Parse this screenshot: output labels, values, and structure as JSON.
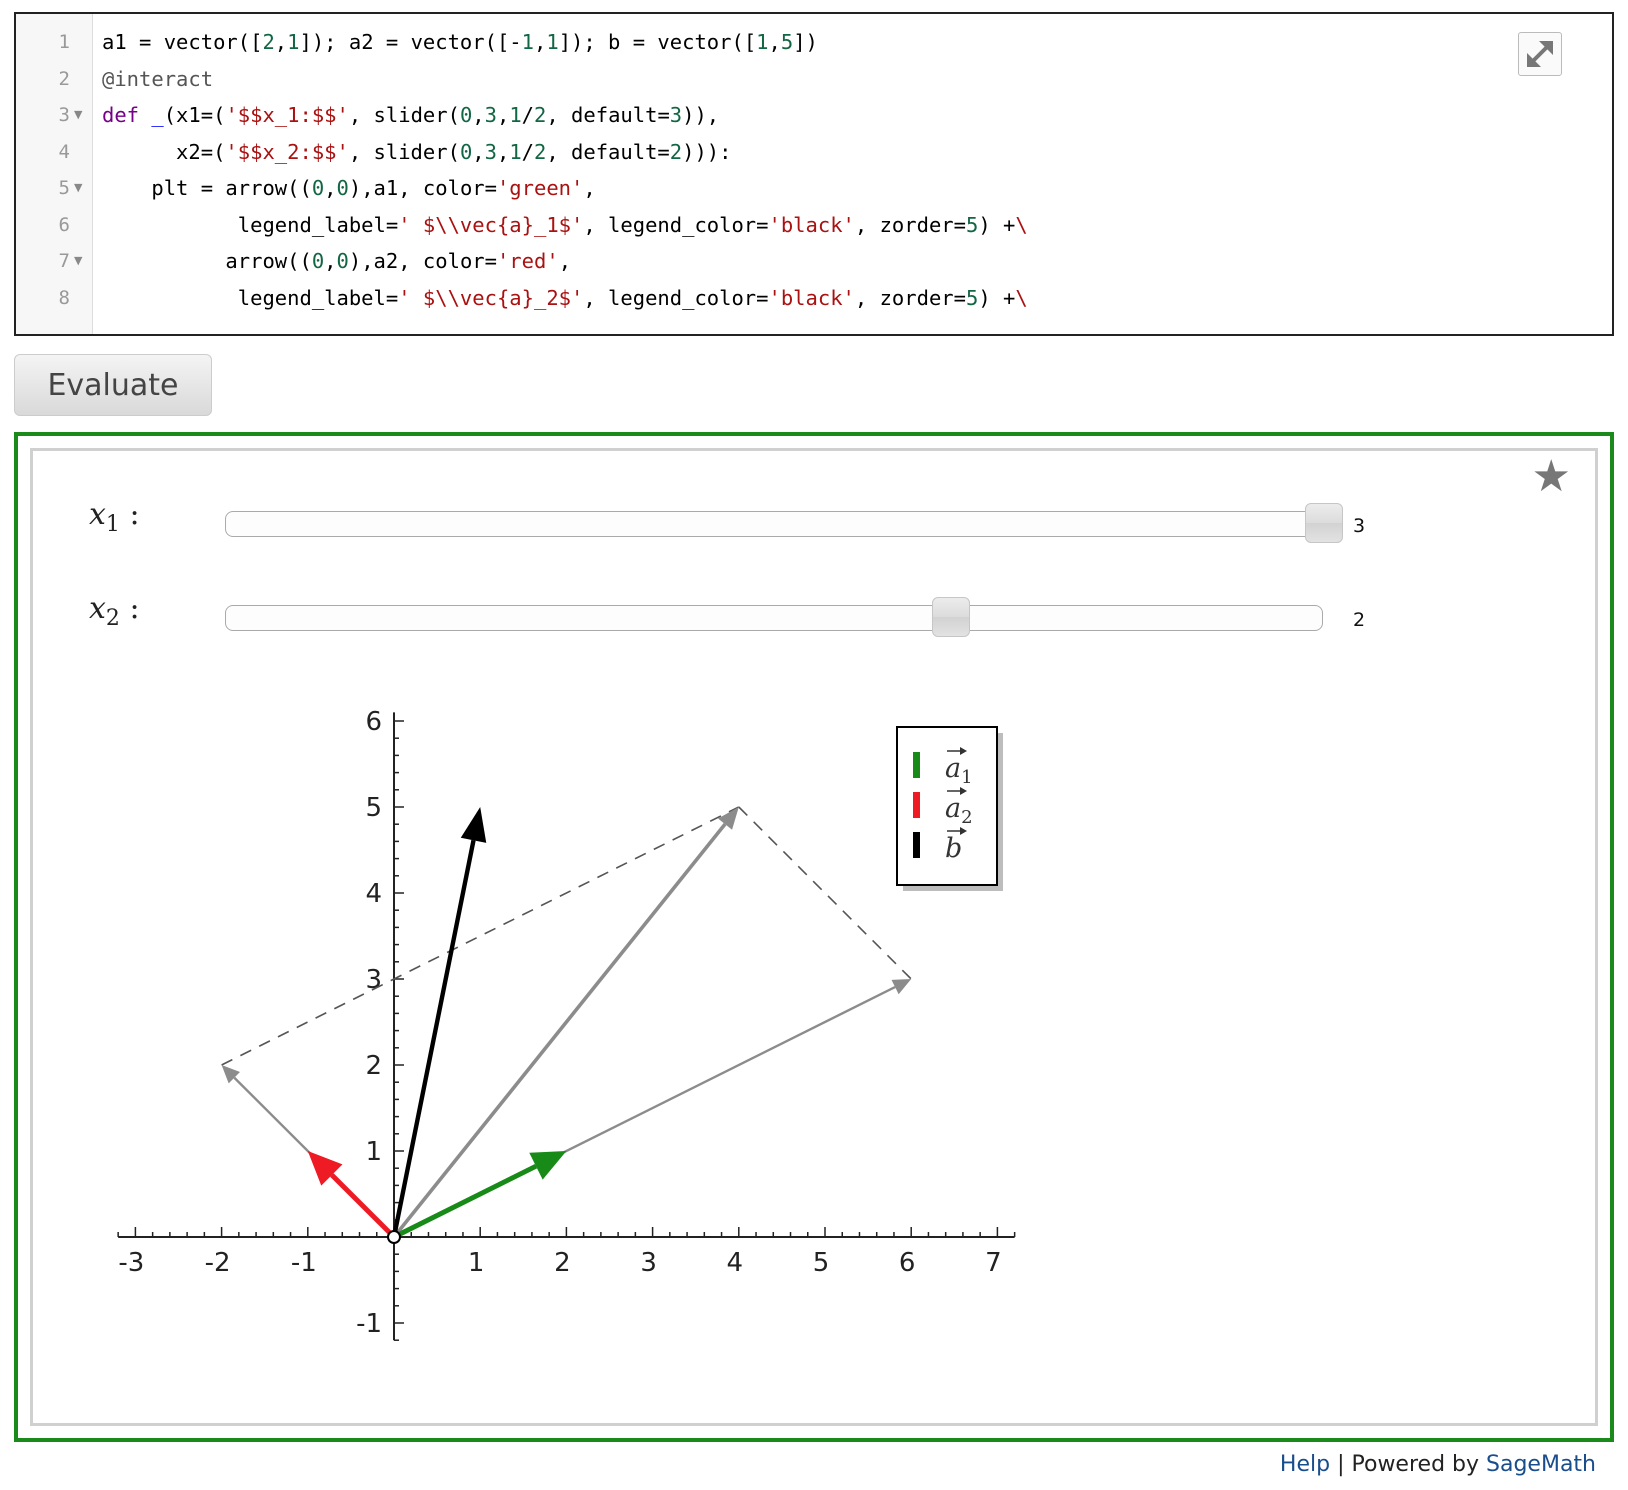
{
  "editor": {
    "line_numbers": [
      "1",
      "2",
      "3",
      "4",
      "5",
      "6",
      "7",
      "8"
    ],
    "lines": [
      [
        {
          "t": "a1 = vector([",
          "c": ""
        },
        {
          "t": "2",
          "c": "num"
        },
        {
          "t": ",",
          "c": ""
        },
        {
          "t": "1",
          "c": "num"
        },
        {
          "t": "]); a2 = vector([-",
          "c": ""
        },
        {
          "t": "1",
          "c": "num"
        },
        {
          "t": ",",
          "c": ""
        },
        {
          "t": "1",
          "c": "num"
        },
        {
          "t": "]); b = vector([",
          "c": ""
        },
        {
          "t": "1",
          "c": "num"
        },
        {
          "t": ",",
          "c": ""
        },
        {
          "t": "5",
          "c": "num"
        },
        {
          "t": "])",
          "c": ""
        }
      ],
      [
        {
          "t": "@interact",
          "c": "meta"
        }
      ],
      [
        {
          "t": "def",
          "c": "kw"
        },
        {
          "t": " ",
          "c": ""
        },
        {
          "t": "_",
          "c": "def"
        },
        {
          "t": "(x1=(",
          "c": ""
        },
        {
          "t": "'$$x_1:$$'",
          "c": "str"
        },
        {
          "t": ", slider(",
          "c": ""
        },
        {
          "t": "0",
          "c": "num"
        },
        {
          "t": ",",
          "c": ""
        },
        {
          "t": "3",
          "c": "num"
        },
        {
          "t": ",",
          "c": ""
        },
        {
          "t": "1",
          "c": "num"
        },
        {
          "t": "/",
          "c": ""
        },
        {
          "t": "2",
          "c": "num"
        },
        {
          "t": ", default=",
          "c": ""
        },
        {
          "t": "3",
          "c": "num"
        },
        {
          "t": ")),",
          "c": ""
        }
      ],
      [
        {
          "t": "      x2=(",
          "c": ""
        },
        {
          "t": "'$$x_2:$$'",
          "c": "str"
        },
        {
          "t": ", slider(",
          "c": ""
        },
        {
          "t": "0",
          "c": "num"
        },
        {
          "t": ",",
          "c": ""
        },
        {
          "t": "3",
          "c": "num"
        },
        {
          "t": ",",
          "c": ""
        },
        {
          "t": "1",
          "c": "num"
        },
        {
          "t": "/",
          "c": ""
        },
        {
          "t": "2",
          "c": "num"
        },
        {
          "t": ", default=",
          "c": ""
        },
        {
          "t": "2",
          "c": "num"
        },
        {
          "t": "))):",
          "c": ""
        }
      ],
      [
        {
          "t": "    plt = arrow((",
          "c": ""
        },
        {
          "t": "0",
          "c": "num"
        },
        {
          "t": ",",
          "c": ""
        },
        {
          "t": "0",
          "c": "num"
        },
        {
          "t": "),a1, color=",
          "c": ""
        },
        {
          "t": "'green'",
          "c": "str"
        },
        {
          "t": ",",
          "c": ""
        }
      ],
      [
        {
          "t": "           legend_label=",
          "c": ""
        },
        {
          "t": "' $\\\\vec{a}_1$'",
          "c": "str"
        },
        {
          "t": ", legend_color=",
          "c": ""
        },
        {
          "t": "'black'",
          "c": "str"
        },
        {
          "t": ", zorder=",
          "c": ""
        },
        {
          "t": "5",
          "c": "num"
        },
        {
          "t": ") +",
          "c": ""
        },
        {
          "t": "\\",
          "c": "str"
        }
      ],
      [
        {
          "t": "          arrow((",
          "c": ""
        },
        {
          "t": "0",
          "c": "num"
        },
        {
          "t": ",",
          "c": ""
        },
        {
          "t": "0",
          "c": "num"
        },
        {
          "t": "),a2, color=",
          "c": ""
        },
        {
          "t": "'red'",
          "c": "str"
        },
        {
          "t": ",",
          "c": ""
        }
      ],
      [
        {
          "t": "           legend_label=",
          "c": ""
        },
        {
          "t": "' $\\\\vec{a}_2$'",
          "c": "str"
        },
        {
          "t": ", legend_color=",
          "c": ""
        },
        {
          "t": "'black'",
          "c": "str"
        },
        {
          "t": ", zorder=",
          "c": ""
        },
        {
          "t": "5",
          "c": "num"
        },
        {
          "t": ") +",
          "c": ""
        },
        {
          "t": "\\",
          "c": "str"
        }
      ]
    ],
    "foldable_lines": [
      3,
      5,
      7
    ]
  },
  "evaluate_label": "Evaluate",
  "sliders": [
    {
      "name": "x1",
      "symbol": "x",
      "sub": "1",
      "colon": ":",
      "value": "3",
      "min": 0,
      "max": 3,
      "current": 3
    },
    {
      "name": "x2",
      "symbol": "x",
      "sub": "2",
      "colon": ":",
      "value": "2",
      "min": 0,
      "max": 3,
      "current": 2
    }
  ],
  "chart_data": {
    "type": "vector-plot",
    "xlim": [
      -3,
      7
    ],
    "ylim": [
      -1,
      6
    ],
    "x_ticks": [
      "-3",
      "-2",
      "-1",
      "1",
      "2",
      "3",
      "4",
      "5",
      "6",
      "7"
    ],
    "x_tick_values": [
      -3,
      -2,
      -1,
      1,
      2,
      3,
      4,
      5,
      6,
      7
    ],
    "y_ticks": [
      "-1",
      "1",
      "2",
      "3",
      "4",
      "5",
      "6"
    ],
    "y_tick_values": [
      -1,
      1,
      2,
      3,
      4,
      5,
      6
    ],
    "vectors": [
      {
        "name": "a1",
        "from": [
          0,
          0
        ],
        "to": [
          2,
          1
        ],
        "color": "#178a17",
        "role": "basis"
      },
      {
        "name": "a2",
        "from": [
          0,
          0
        ],
        "to": [
          -1,
          1
        ],
        "color": "#ee1a24",
        "role": "basis"
      },
      {
        "name": "b",
        "from": [
          0,
          0
        ],
        "to": [
          1,
          5
        ],
        "color": "#000000",
        "role": "target"
      },
      {
        "name": "x1*a1",
        "from": [
          0,
          0
        ],
        "to": [
          6,
          3
        ],
        "color": "#8c8c8c",
        "role": "scaled"
      },
      {
        "name": "x2*a2",
        "from": [
          0,
          0
        ],
        "to": [
          -2,
          2
        ],
        "color": "#8c8c8c",
        "role": "scaled"
      },
      {
        "name": "x1*a1+x2*a2",
        "from": [
          0,
          0
        ],
        "to": [
          4,
          5
        ],
        "color": "#8c8c8c",
        "role": "sum"
      }
    ],
    "dashed_lines": [
      {
        "from": [
          -2,
          2
        ],
        "to": [
          4,
          5
        ]
      },
      {
        "from": [
          4,
          5
        ],
        "to": [
          6,
          3
        ]
      }
    ],
    "legend": [
      {
        "label": "a1",
        "base": "a",
        "sub": "1",
        "color": "#178a17"
      },
      {
        "label": "a2",
        "base": "a",
        "sub": "2",
        "color": "#ee1a24"
      },
      {
        "label": "b",
        "base": "b",
        "sub": "",
        "color": "#000000"
      }
    ],
    "legend_position": "top-right"
  },
  "footer": {
    "help": "Help",
    "separator": "|",
    "powered_by": "Powered by",
    "sagemath": "SageMath"
  }
}
